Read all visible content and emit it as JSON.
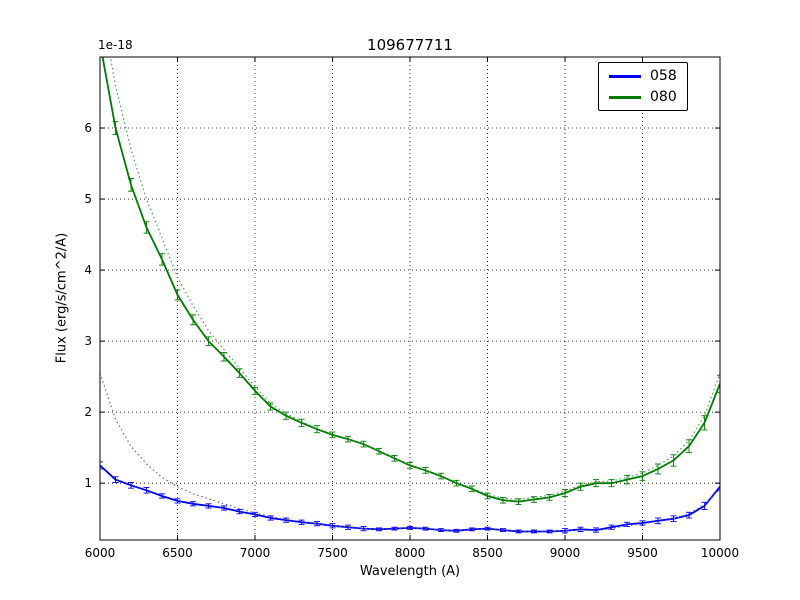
{
  "figure": {
    "title": "109677711",
    "offset_label": "1e-18",
    "xlabel": "Wavelength (A)",
    "ylabel": "Flux (erg/s/cm^2/A)"
  },
  "legend": {
    "position": "upper right",
    "entries": [
      {
        "series_index": 0
      },
      {
        "series_index": 2
      }
    ]
  },
  "chart_data": {
    "type": "line",
    "title": "109677711",
    "xlabel": "Wavelength (A)",
    "ylabel": "Flux (erg/s/cm^2/A)",
    "y_offset_factor": "1e-18",
    "grid": true,
    "grid_style": "dotted",
    "frame_color": "#000000",
    "xlim": [
      6000,
      10000
    ],
    "ylim": [
      0.2,
      7.0
    ],
    "xticks": [
      6000,
      6500,
      7000,
      7500,
      8000,
      8500,
      9000,
      9500,
      10000
    ],
    "yticks": [
      1,
      2,
      3,
      4,
      5,
      6
    ],
    "legend_position": "upper right",
    "x": [
      6000,
      6100,
      6200,
      6300,
      6400,
      6500,
      6600,
      6700,
      6800,
      6900,
      7000,
      7100,
      7200,
      7300,
      7400,
      7500,
      7600,
      7700,
      7800,
      7900,
      8000,
      8100,
      8200,
      8300,
      8400,
      8500,
      8600,
      8700,
      8800,
      8900,
      9000,
      9100,
      9200,
      9300,
      9400,
      9500,
      9600,
      9700,
      9800,
      9900,
      10000
    ],
    "series": [
      {
        "name": "058",
        "style": "solid",
        "color": "#0000ee",
        "has_errorbars": true,
        "values": [
          1.25,
          1.05,
          0.97,
          0.9,
          0.82,
          0.75,
          0.71,
          0.68,
          0.65,
          0.6,
          0.56,
          0.51,
          0.48,
          0.45,
          0.43,
          0.4,
          0.38,
          0.36,
          0.35,
          0.36,
          0.37,
          0.36,
          0.34,
          0.33,
          0.35,
          0.36,
          0.34,
          0.32,
          0.32,
          0.32,
          0.33,
          0.35,
          0.34,
          0.38,
          0.42,
          0.44,
          0.47,
          0.5,
          0.55,
          0.68,
          0.95
        ],
        "err": [
          0.05,
          0.04,
          0.04,
          0.04,
          0.03,
          0.03,
          0.03,
          0.03,
          0.03,
          0.03,
          0.03,
          0.03,
          0.03,
          0.03,
          0.03,
          0.03,
          0.03,
          0.03,
          0.02,
          0.02,
          0.02,
          0.02,
          0.02,
          0.02,
          0.02,
          0.02,
          0.02,
          0.02,
          0.02,
          0.02,
          0.03,
          0.03,
          0.03,
          0.03,
          0.03,
          0.03,
          0.04,
          0.04,
          0.04,
          0.05,
          0.05
        ]
      },
      {
        "name": "058-dotted",
        "style": "dotted",
        "color": "#5555cc",
        "has_errorbars": false,
        "values": [
          2.55,
          1.9,
          1.52,
          1.27,
          1.08,
          0.95,
          0.85,
          0.78,
          0.71,
          0.64,
          0.58,
          0.53,
          0.49,
          0.46,
          0.43,
          0.4,
          0.38,
          0.36,
          0.35,
          0.36,
          0.37,
          0.36,
          0.34,
          0.33,
          0.35,
          0.36,
          0.34,
          0.32,
          0.32,
          0.32,
          0.33,
          0.34,
          0.33,
          0.36,
          0.4,
          0.43,
          0.46,
          0.5,
          0.57,
          0.7,
          0.92
        ]
      },
      {
        "name": "080",
        "style": "solid",
        "color": "#007a00",
        "has_errorbars": true,
        "values": [
          7.2,
          6.0,
          5.2,
          4.6,
          4.15,
          3.65,
          3.3,
          3.0,
          2.78,
          2.55,
          2.3,
          2.08,
          1.95,
          1.85,
          1.76,
          1.68,
          1.62,
          1.55,
          1.45,
          1.35,
          1.25,
          1.18,
          1.1,
          1.0,
          0.92,
          0.82,
          0.76,
          0.74,
          0.77,
          0.8,
          0.86,
          0.95,
          1.0,
          1.0,
          1.05,
          1.1,
          1.2,
          1.32,
          1.52,
          1.85,
          2.4
        ],
        "err": [
          0.1,
          0.09,
          0.09,
          0.08,
          0.08,
          0.07,
          0.07,
          0.06,
          0.06,
          0.06,
          0.05,
          0.05,
          0.05,
          0.05,
          0.05,
          0.04,
          0.04,
          0.04,
          0.04,
          0.04,
          0.04,
          0.04,
          0.04,
          0.04,
          0.04,
          0.04,
          0.04,
          0.04,
          0.04,
          0.04,
          0.05,
          0.05,
          0.05,
          0.05,
          0.06,
          0.06,
          0.07,
          0.08,
          0.09,
          0.1,
          0.12
        ]
      },
      {
        "name": "080-dotted",
        "style": "dotted",
        "color": "#339933",
        "has_errorbars": false,
        "values": [
          7.8,
          6.6,
          5.7,
          5.0,
          4.45,
          3.9,
          3.5,
          3.15,
          2.88,
          2.62,
          2.36,
          2.12,
          1.98,
          1.87,
          1.77,
          1.69,
          1.62,
          1.55,
          1.45,
          1.35,
          1.25,
          1.18,
          1.1,
          1.01,
          0.93,
          0.84,
          0.79,
          0.77,
          0.8,
          0.83,
          0.89,
          0.97,
          1.02,
          1.03,
          1.08,
          1.14,
          1.25,
          1.38,
          1.6,
          1.95,
          2.55
        ]
      }
    ]
  }
}
